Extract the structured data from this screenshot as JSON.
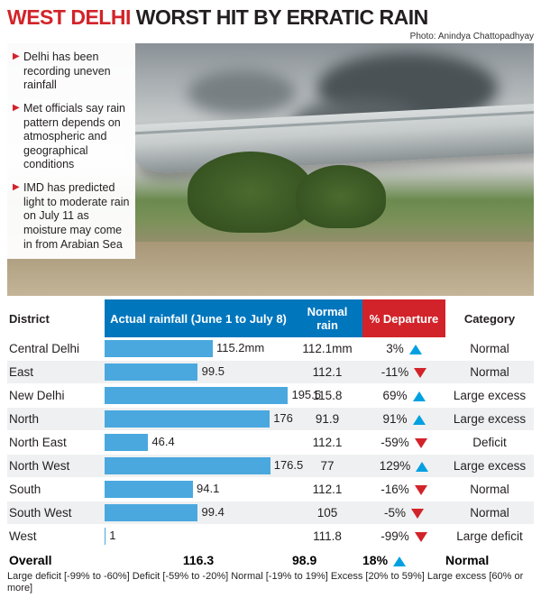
{
  "headline_accent": "WEST DELHI",
  "headline_rest": " WORST HIT BY ERRATIC RAIN",
  "photo_credit_label": "Photo: ",
  "photo_credit_name": "Anindya Chattopadhyay",
  "bullets": [
    "Delhi has been recording uneven rainfall",
    "Met officials say rain pattern depends on atmospheric and geographical conditions",
    "IMD has predicted light to moderate rain on July 11 as moisture may come in from Arabian Sea"
  ],
  "columns": {
    "district": "District",
    "actual": "Actual rainfall (June 1 to July 8)",
    "normal": "Normal rain",
    "departure": "% Departure",
    "category": "Category"
  },
  "chart": {
    "type": "bar",
    "bar_color": "#4aa8df",
    "max_value": 200,
    "header_bg_blue": "#0076bd",
    "header_bg_red": "#d2232a",
    "arrow_up_color": "#00a0e1",
    "arrow_down_color": "#d2232a",
    "row_alt_bg": "#eef0f1"
  },
  "rows": [
    {
      "district": "Central Delhi",
      "actual": 115.2,
      "actual_label": "115.2mm",
      "normal": "112.1mm",
      "departure": "3%",
      "dir": "up",
      "category": "Normal"
    },
    {
      "district": "East",
      "actual": 99.5,
      "actual_label": "99.5",
      "normal": "112.1",
      "departure": "-11%",
      "dir": "down",
      "category": "Normal"
    },
    {
      "district": "New Delhi",
      "actual": 195.5,
      "actual_label": "195.5",
      "normal": "115.8",
      "departure": "69%",
      "dir": "up",
      "category": "Large excess"
    },
    {
      "district": "North",
      "actual": 176,
      "actual_label": "176",
      "normal": "91.9",
      "departure": "91%",
      "dir": "up",
      "category": "Large excess"
    },
    {
      "district": "North East",
      "actual": 46.4,
      "actual_label": "46.4",
      "normal": "112.1",
      "departure": "-59%",
      "dir": "down",
      "category": "Deficit"
    },
    {
      "district": "North West",
      "actual": 176.5,
      "actual_label": "176.5",
      "normal": "77",
      "departure": "129%",
      "dir": "up",
      "category": "Large excess"
    },
    {
      "district": "South",
      "actual": 94.1,
      "actual_label": "94.1",
      "normal": "112.1",
      "departure": "-16%",
      "dir": "down",
      "category": "Normal"
    },
    {
      "district": "South West",
      "actual": 99.4,
      "actual_label": "99.4",
      "normal": "105",
      "departure": "-5%",
      "dir": "down",
      "category": "Normal"
    },
    {
      "district": "West",
      "actual": 1,
      "actual_label": "1",
      "normal": "111.8",
      "departure": "-99%",
      "dir": "down",
      "category": "Large deficit"
    }
  ],
  "overall": {
    "label": "Overall",
    "actual": "116.3",
    "normal": "98.9",
    "departure": "18%",
    "dir": "up",
    "category": "Normal"
  },
  "legend": "Large deficit [-99% to -60%] Deficit [-59% to -20%] Normal [-19% to 19%] Excess [20% to 59%] Large excess [60% or more]"
}
